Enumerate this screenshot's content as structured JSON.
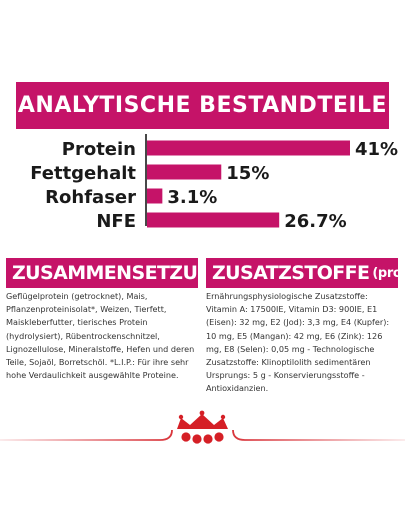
{
  "chart_data": {
    "type": "bar",
    "title": "ANALYTISCHE BESTANDTEILE",
    "categories": [
      "Protein",
      "Fettgehalt",
      "Rohfaser",
      "NFE"
    ],
    "values": [
      41,
      15,
      3.1,
      26.7
    ],
    "value_labels": [
      "41%",
      "15%",
      "3.1%",
      "26.7%"
    ],
    "unit": "%",
    "orientation": "horizontal",
    "bar_color": "#c51368",
    "xlim": [
      0,
      41
    ]
  },
  "composition": {
    "header": "ZUSAMMENSETZUNG",
    "text": "Geflügelprotein (getrocknet), Mais, Pflanzenproteinisolat*, Weizen, Tierfett, Maiskleberfutter, tierisches Protein (hydrolysiert), Rübentrockenschnitzel, Lignozellulose, Mineralstoffe, Hefen und deren Teile, Sojaöl, Borretschöl. *L.I.P.: Für ihre sehr hohe Verdaulichkeit ausgewählte Proteine."
  },
  "additives": {
    "header": "ZUSATZSTOFFE",
    "header_suffix": "(pro kg)",
    "text": "Ernährungsphysiologische Zusatzstoffe: Vitamin A: 17500IE, Vitamin D3: 900IE, E1 (Eisen): 32 mg, E2 (Jod): 3,3 mg, E4 (Kupfer): 10 mg, E5 (Mangan): 42 mg, E6 (Zink): 126 mg, E8 (Selen): 0,05 mg - Technologische Zusatzstoffe: Klinoptilolith sedimentären Ursprungs: 5 g - Konservierungsstoffe - Antioxidanzien."
  },
  "colors": {
    "accent": "#c51368",
    "logo_red": "#d51f26"
  },
  "logo": {
    "icon": "royal-canin-crown-logo"
  }
}
